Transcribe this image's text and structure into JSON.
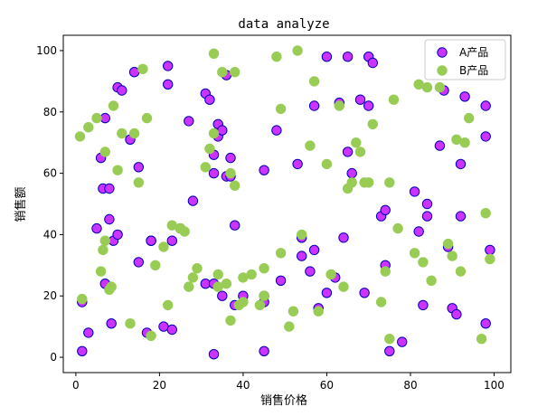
{
  "chart_data": {
    "type": "scatter",
    "title": "data analyze",
    "xlabel": "销售价格",
    "ylabel": "销售额",
    "xlim": [
      -3,
      104
    ],
    "ylim": [
      -5,
      105
    ],
    "xticks": [
      0,
      20,
      40,
      60,
      80,
      100
    ],
    "yticks": [
      0,
      20,
      40,
      60,
      80,
      100
    ],
    "grid": false,
    "legend_position": "top-right",
    "series": [
      {
        "name": "A产品",
        "face_color": "#cc33ff",
        "edge_color": "#0000bb",
        "x": [
          1.5,
          1.5,
          3,
          5,
          6,
          6.5,
          7,
          7,
          8,
          8,
          8.5,
          9,
          10,
          10,
          11,
          13,
          14,
          15,
          15,
          17,
          18,
          18,
          21,
          22,
          22,
          23,
          23,
          25,
          27,
          28,
          31,
          31,
          32,
          33,
          33,
          33,
          33,
          34,
          34,
          35,
          35,
          36,
          36,
          37,
          37,
          38,
          38,
          40,
          45,
          45,
          45,
          45,
          48,
          49,
          53,
          54,
          54,
          56,
          57,
          57,
          58,
          60,
          60,
          62,
          63,
          64,
          65,
          65,
          66,
          68,
          69,
          70,
          70,
          71,
          73,
          74,
          74,
          75,
          78,
          81,
          82,
          83,
          84,
          84,
          87,
          88,
          89,
          90,
          91,
          92,
          92,
          93,
          98,
          98,
          98,
          99
        ],
        "y": [
          2,
          18,
          8,
          42,
          65,
          55,
          24,
          78,
          45,
          55,
          11,
          38,
          40,
          88,
          87,
          71,
          93,
          31,
          62,
          8,
          38,
          38,
          10,
          89,
          95,
          9,
          38,
          42,
          77,
          51,
          24,
          86,
          84,
          1,
          24,
          60,
          66,
          72,
          76,
          74,
          20,
          92,
          59,
          65,
          59,
          17,
          43,
          20,
          2,
          18,
          20,
          61,
          74,
          25,
          63,
          39,
          33,
          28,
          82,
          35,
          16,
          21,
          98,
          26,
          83,
          39,
          98,
          67,
          60,
          84,
          21,
          98,
          82,
          96,
          46,
          48,
          30,
          2,
          5,
          54,
          41,
          17,
          46,
          50,
          69,
          87,
          36,
          16,
          14,
          46,
          63,
          85,
          82,
          11,
          72,
          35
        ]
      },
      {
        "name": "B产品",
        "face_color": "#99cc55",
        "edge_color": "#99cc55",
        "x": [
          1,
          1.5,
          3,
          5,
          6,
          6.5,
          7,
          7,
          8,
          8.5,
          9,
          10,
          11,
          13,
          14,
          15,
          16,
          17,
          18,
          19,
          21,
          22,
          23,
          25,
          26,
          27,
          28,
          29,
          31,
          32,
          33,
          33,
          34,
          34,
          35,
          36,
          37,
          37,
          38,
          38,
          39,
          40,
          40,
          42,
          44,
          45,
          45,
          48,
          49,
          49,
          51,
          52,
          53,
          54,
          56,
          57,
          58,
          60,
          61,
          63,
          64,
          65,
          66,
          67,
          68,
          69,
          70,
          71,
          73,
          74,
          75,
          75,
          76,
          77,
          81,
          82,
          83,
          84,
          85,
          87,
          89,
          90,
          91,
          92,
          93,
          94,
          97,
          98,
          99
        ],
        "y": [
          72,
          19,
          75,
          78,
          28,
          35,
          38,
          67,
          22,
          23,
          82,
          61,
          73,
          11,
          73,
          57,
          94,
          78,
          7,
          30,
          36,
          17,
          43,
          42,
          41,
          23,
          26,
          29,
          62,
          68,
          73,
          99,
          27,
          23,
          93,
          24,
          60,
          12,
          93,
          56,
          17,
          26,
          18,
          27,
          17,
          29,
          20,
          98,
          34,
          81,
          10,
          15,
          100,
          40,
          69,
          90,
          15,
          63,
          27,
          82,
          23,
          55,
          57,
          70,
          67,
          57,
          57,
          76,
          18,
          28,
          6,
          57,
          84,
          42,
          34,
          89,
          31,
          88,
          25,
          88,
          37,
          33,
          71,
          28,
          70,
          78,
          6,
          47,
          32
        ]
      }
    ]
  }
}
